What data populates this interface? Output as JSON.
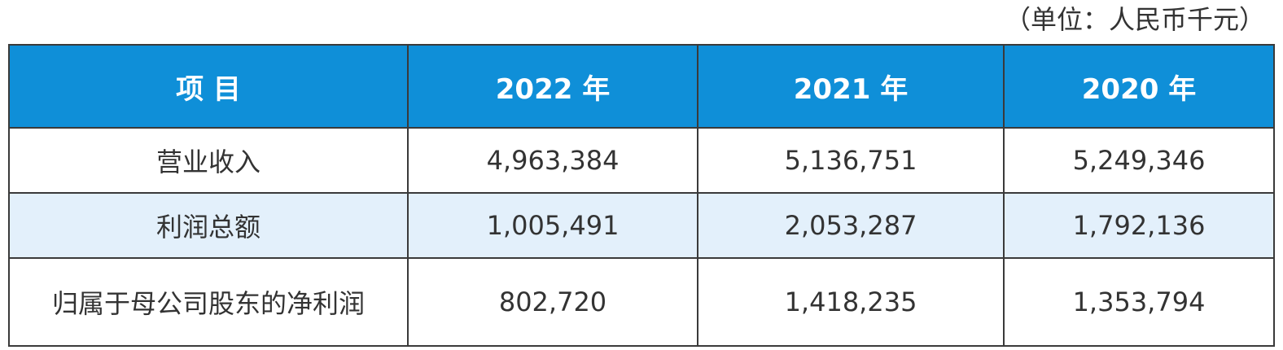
{
  "unit_note": "（单位：人民币千元）",
  "table": {
    "headers": [
      "项 目",
      "2022 年",
      "2021 年",
      "2020 年"
    ],
    "rows": [
      {
        "label": "营业收入",
        "values": [
          "4,963,384",
          "5,136,751",
          "5,249,346"
        ]
      },
      {
        "label": "利润总额",
        "values": [
          "1,005,491",
          "2,053,287",
          "1,792,136"
        ]
      },
      {
        "label": "归属于母公司股东的净利润",
        "values": [
          "802,720",
          "1,418,235",
          "1,353,794"
        ]
      }
    ]
  },
  "colors": {
    "header_bg": "#0f8fd8",
    "header_text": "#ffffff",
    "shaded_row_bg": "#e3f0fb",
    "border": "#3a3a3a"
  }
}
